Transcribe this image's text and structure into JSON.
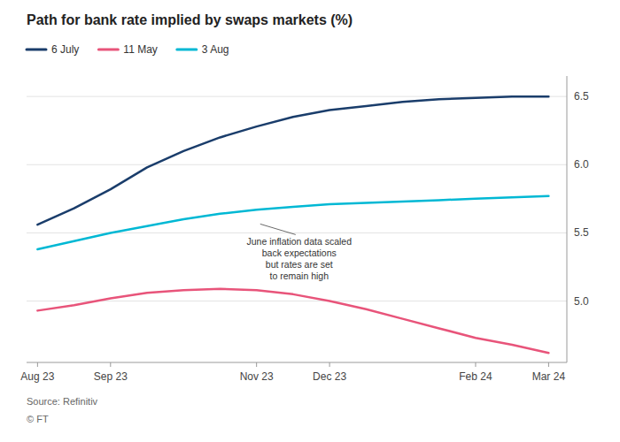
{
  "chart_data": {
    "type": "line",
    "title": "Path for bank rate implied by swaps markets (%)",
    "source": "Source: Refinitiv",
    "copyright": "© FT",
    "x": [
      0,
      0.5,
      1,
      1.5,
      2,
      2.5,
      3,
      3.5,
      4,
      4.5,
      5,
      5.5,
      6,
      6.5,
      7
    ],
    "series": [
      {
        "name": "6 July",
        "color": "#1a3d6b",
        "values": [
          5.56,
          5.68,
          5.82,
          5.98,
          6.1,
          6.2,
          6.28,
          6.35,
          6.4,
          6.43,
          6.46,
          6.48,
          6.49,
          6.5,
          6.5
        ]
      },
      {
        "name": "11 May",
        "color": "#e8547a",
        "values": [
          4.93,
          4.97,
          5.02,
          5.06,
          5.08,
          5.09,
          5.08,
          5.05,
          5.0,
          4.94,
          4.87,
          4.8,
          4.73,
          4.68,
          4.62
        ]
      },
      {
        "name": "3 Aug",
        "color": "#00b8d4",
        "values": [
          5.38,
          5.44,
          5.5,
          5.55,
          5.6,
          5.64,
          5.67,
          5.69,
          5.71,
          5.72,
          5.73,
          5.74,
          5.75,
          5.76,
          5.77
        ]
      }
    ],
    "xlim": [
      -0.15,
      7.25
    ],
    "xticks": [
      {
        "value": 0,
        "label": "Aug 23"
      },
      {
        "value": 1,
        "label": "Sep 23"
      },
      {
        "value": 3,
        "label": "Nov 23"
      },
      {
        "value": 4,
        "label": "Dec 23"
      },
      {
        "value": 6,
        "label": "Feb 24"
      },
      {
        "value": 7,
        "label": "Mar 24"
      }
    ],
    "ylim": [
      4.55,
      6.65
    ],
    "yticks": [
      {
        "value": 5.0,
        "label": "5.0"
      },
      5.5,
      {
        "value": 6.0,
        "label": "6.0"
      },
      6.5
    ],
    "annotations": [
      {
        "text": "June inflation data scaled\nback expectations\nbut rates are set\nto remain high",
        "x": 3.05,
        "y": 5.565
      }
    ],
    "grid": true,
    "legend": "top"
  }
}
